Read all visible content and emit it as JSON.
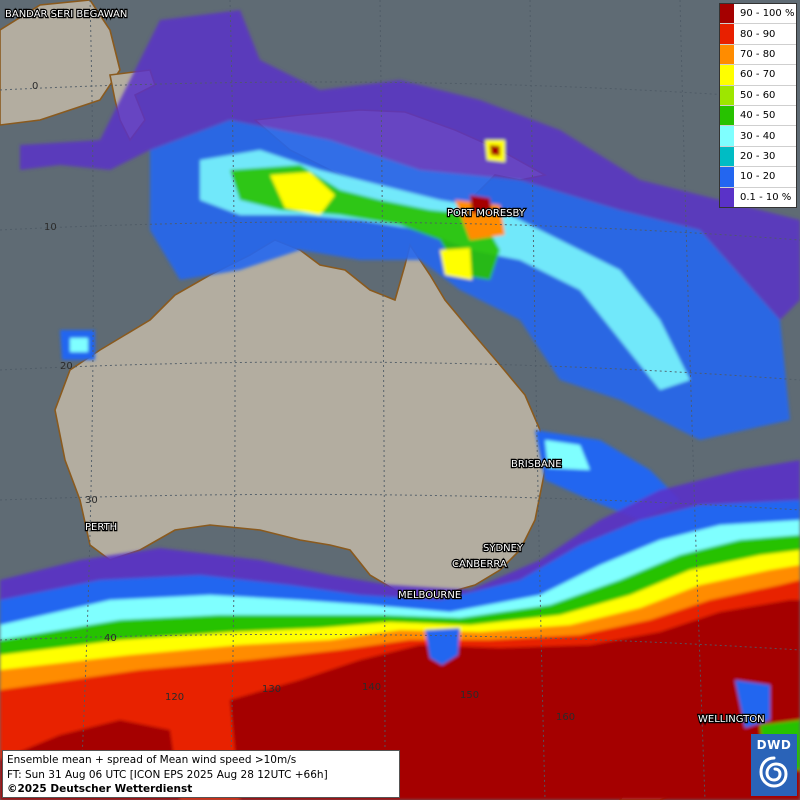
{
  "cities": [
    {
      "name": "BANDAR SERI BEGAWAN"
    },
    {
      "name": "PORT MORESBY"
    },
    {
      "name": "BRISBANE"
    },
    {
      "name": "PERTH"
    },
    {
      "name": "SYDNEY"
    },
    {
      "name": "CANBERRA"
    },
    {
      "name": "MELBOURNE"
    },
    {
      "name": "WELLINGTON"
    }
  ],
  "latitude_labels": [
    "0",
    "10",
    "20",
    "30",
    "40"
  ],
  "longitude_labels": [
    "120",
    "130",
    "140",
    "150",
    "160"
  ],
  "legend": {
    "items": [
      {
        "label": "90 - 100 %",
        "color": "#a50000"
      },
      {
        "label": "80 - 90",
        "color": "#e82000"
      },
      {
        "label": "70 - 80",
        "color": "#ff8c00"
      },
      {
        "label": "60 - 70",
        "color": "#ffff00"
      },
      {
        "label": "50 - 60",
        "color": "#9ee600"
      },
      {
        "label": "40 - 50",
        "color": "#27c200"
      },
      {
        "label": "30 - 40",
        "color": "#7fffff"
      },
      {
        "label": "20 - 30",
        "color": "#00bcc4"
      },
      {
        "label": "10 - 20",
        "color": "#2366f0"
      },
      {
        "label": "0.1 - 10 %",
        "color": "#5a32c8"
      }
    ]
  },
  "info": {
    "line1": "Ensemble mean + spread of Mean wind speed >10m/s",
    "line2": "FT: Sun 31 Aug 06 UTC [ICON EPS 2025 Aug 28 12UTC +66h]",
    "line3": "©2025 Deutscher Wetterdienst"
  },
  "logo": {
    "text": "DWD"
  },
  "colors": {
    "sea": "#5f6b74",
    "land": "#b3ada0",
    "coast": "#8a5a1e"
  }
}
